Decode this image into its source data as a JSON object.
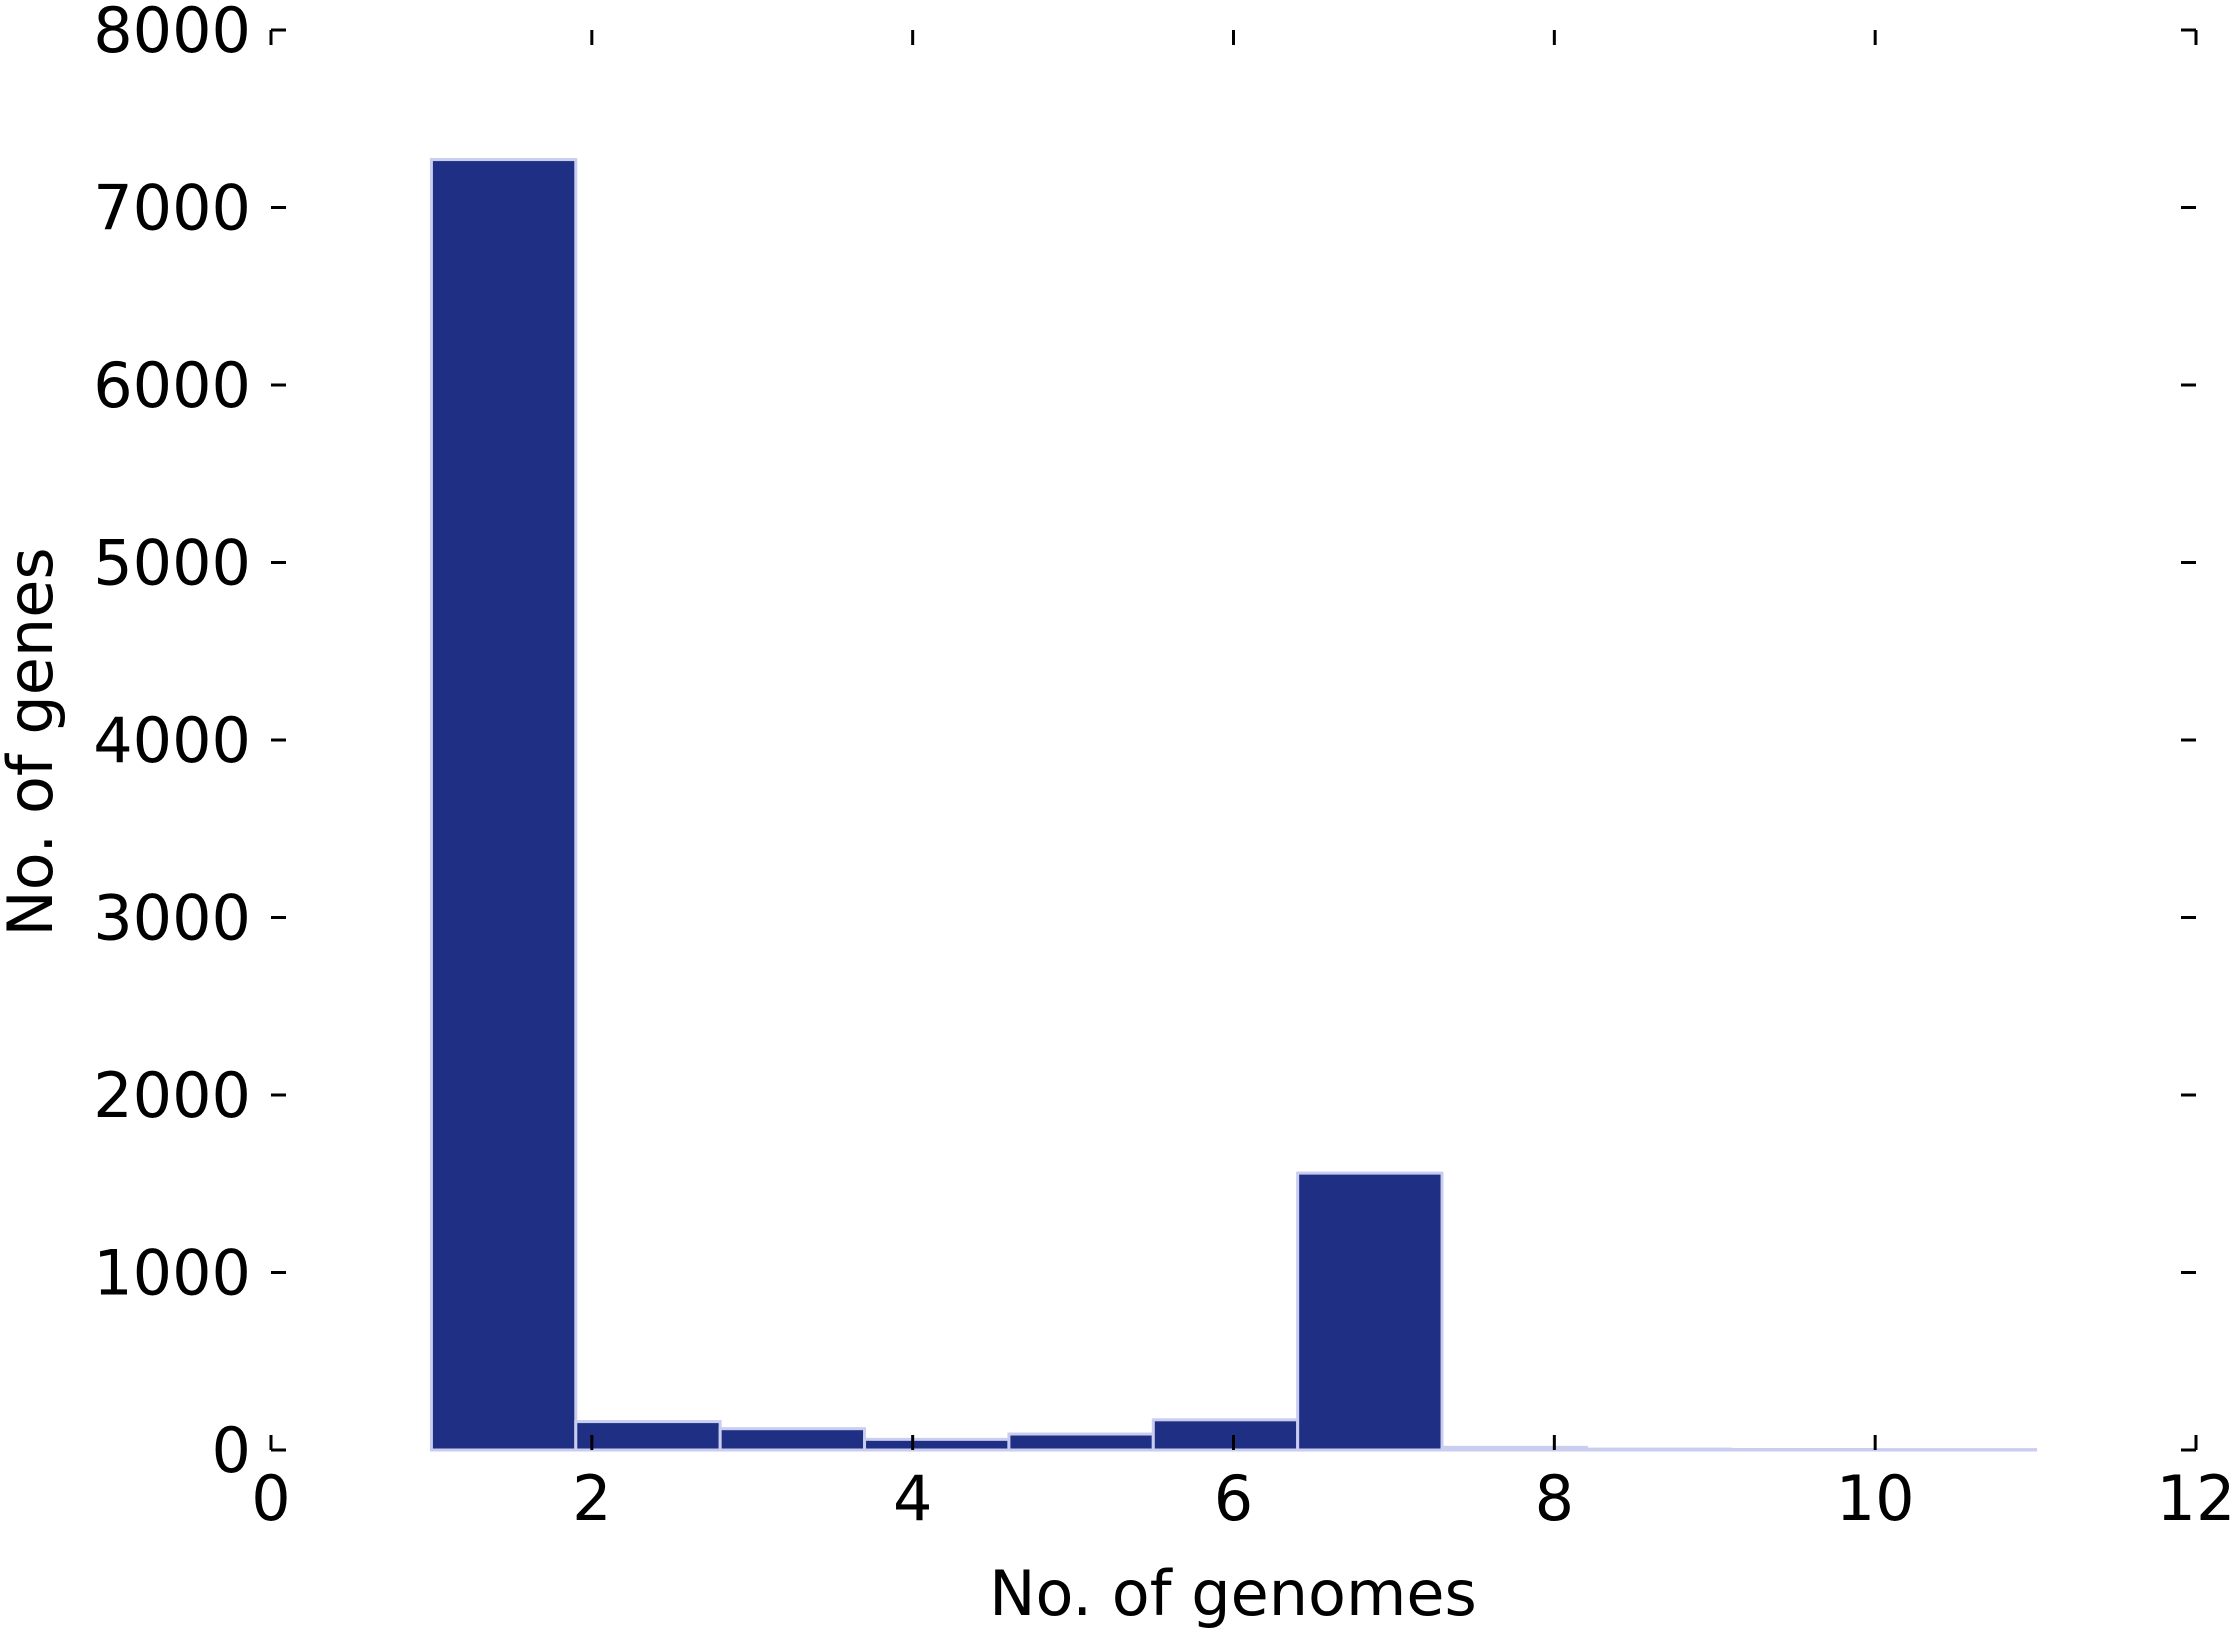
{
  "chart_data": {
    "type": "bar",
    "title": "",
    "xlabel": "No. of genomes",
    "ylabel": "No. of genes",
    "xlim": [
      0,
      12
    ],
    "ylim": [
      0,
      8000
    ],
    "xticks": [
      0,
      2,
      4,
      6,
      8,
      10,
      12
    ],
    "yticks": [
      0,
      1000,
      2000,
      3000,
      4000,
      5000,
      6000,
      7000,
      8000
    ],
    "grid": false,
    "bins": [
      {
        "start": 1.0,
        "end": 1.9,
        "value": 7270
      },
      {
        "start": 1.9,
        "end": 2.8,
        "value": 160
      },
      {
        "start": 2.8,
        "end": 3.7,
        "value": 120
      },
      {
        "start": 3.7,
        "end": 4.6,
        "value": 60
      },
      {
        "start": 4.6,
        "end": 5.5,
        "value": 90
      },
      {
        "start": 5.5,
        "end": 6.4,
        "value": 170
      },
      {
        "start": 6.4,
        "end": 7.3,
        "value": 1560
      },
      {
        "start": 7.3,
        "end": 8.2,
        "value": 15
      },
      {
        "start": 8.2,
        "end": 9.1,
        "value": 5
      },
      {
        "start": 9.1,
        "end": 10.0,
        "value": 3
      },
      {
        "start": 10.0,
        "end": 11.0,
        "value": 2
      }
    ],
    "colors": {
      "bar": "#1f2f84",
      "bar_edge": "#c9cdf0"
    }
  }
}
